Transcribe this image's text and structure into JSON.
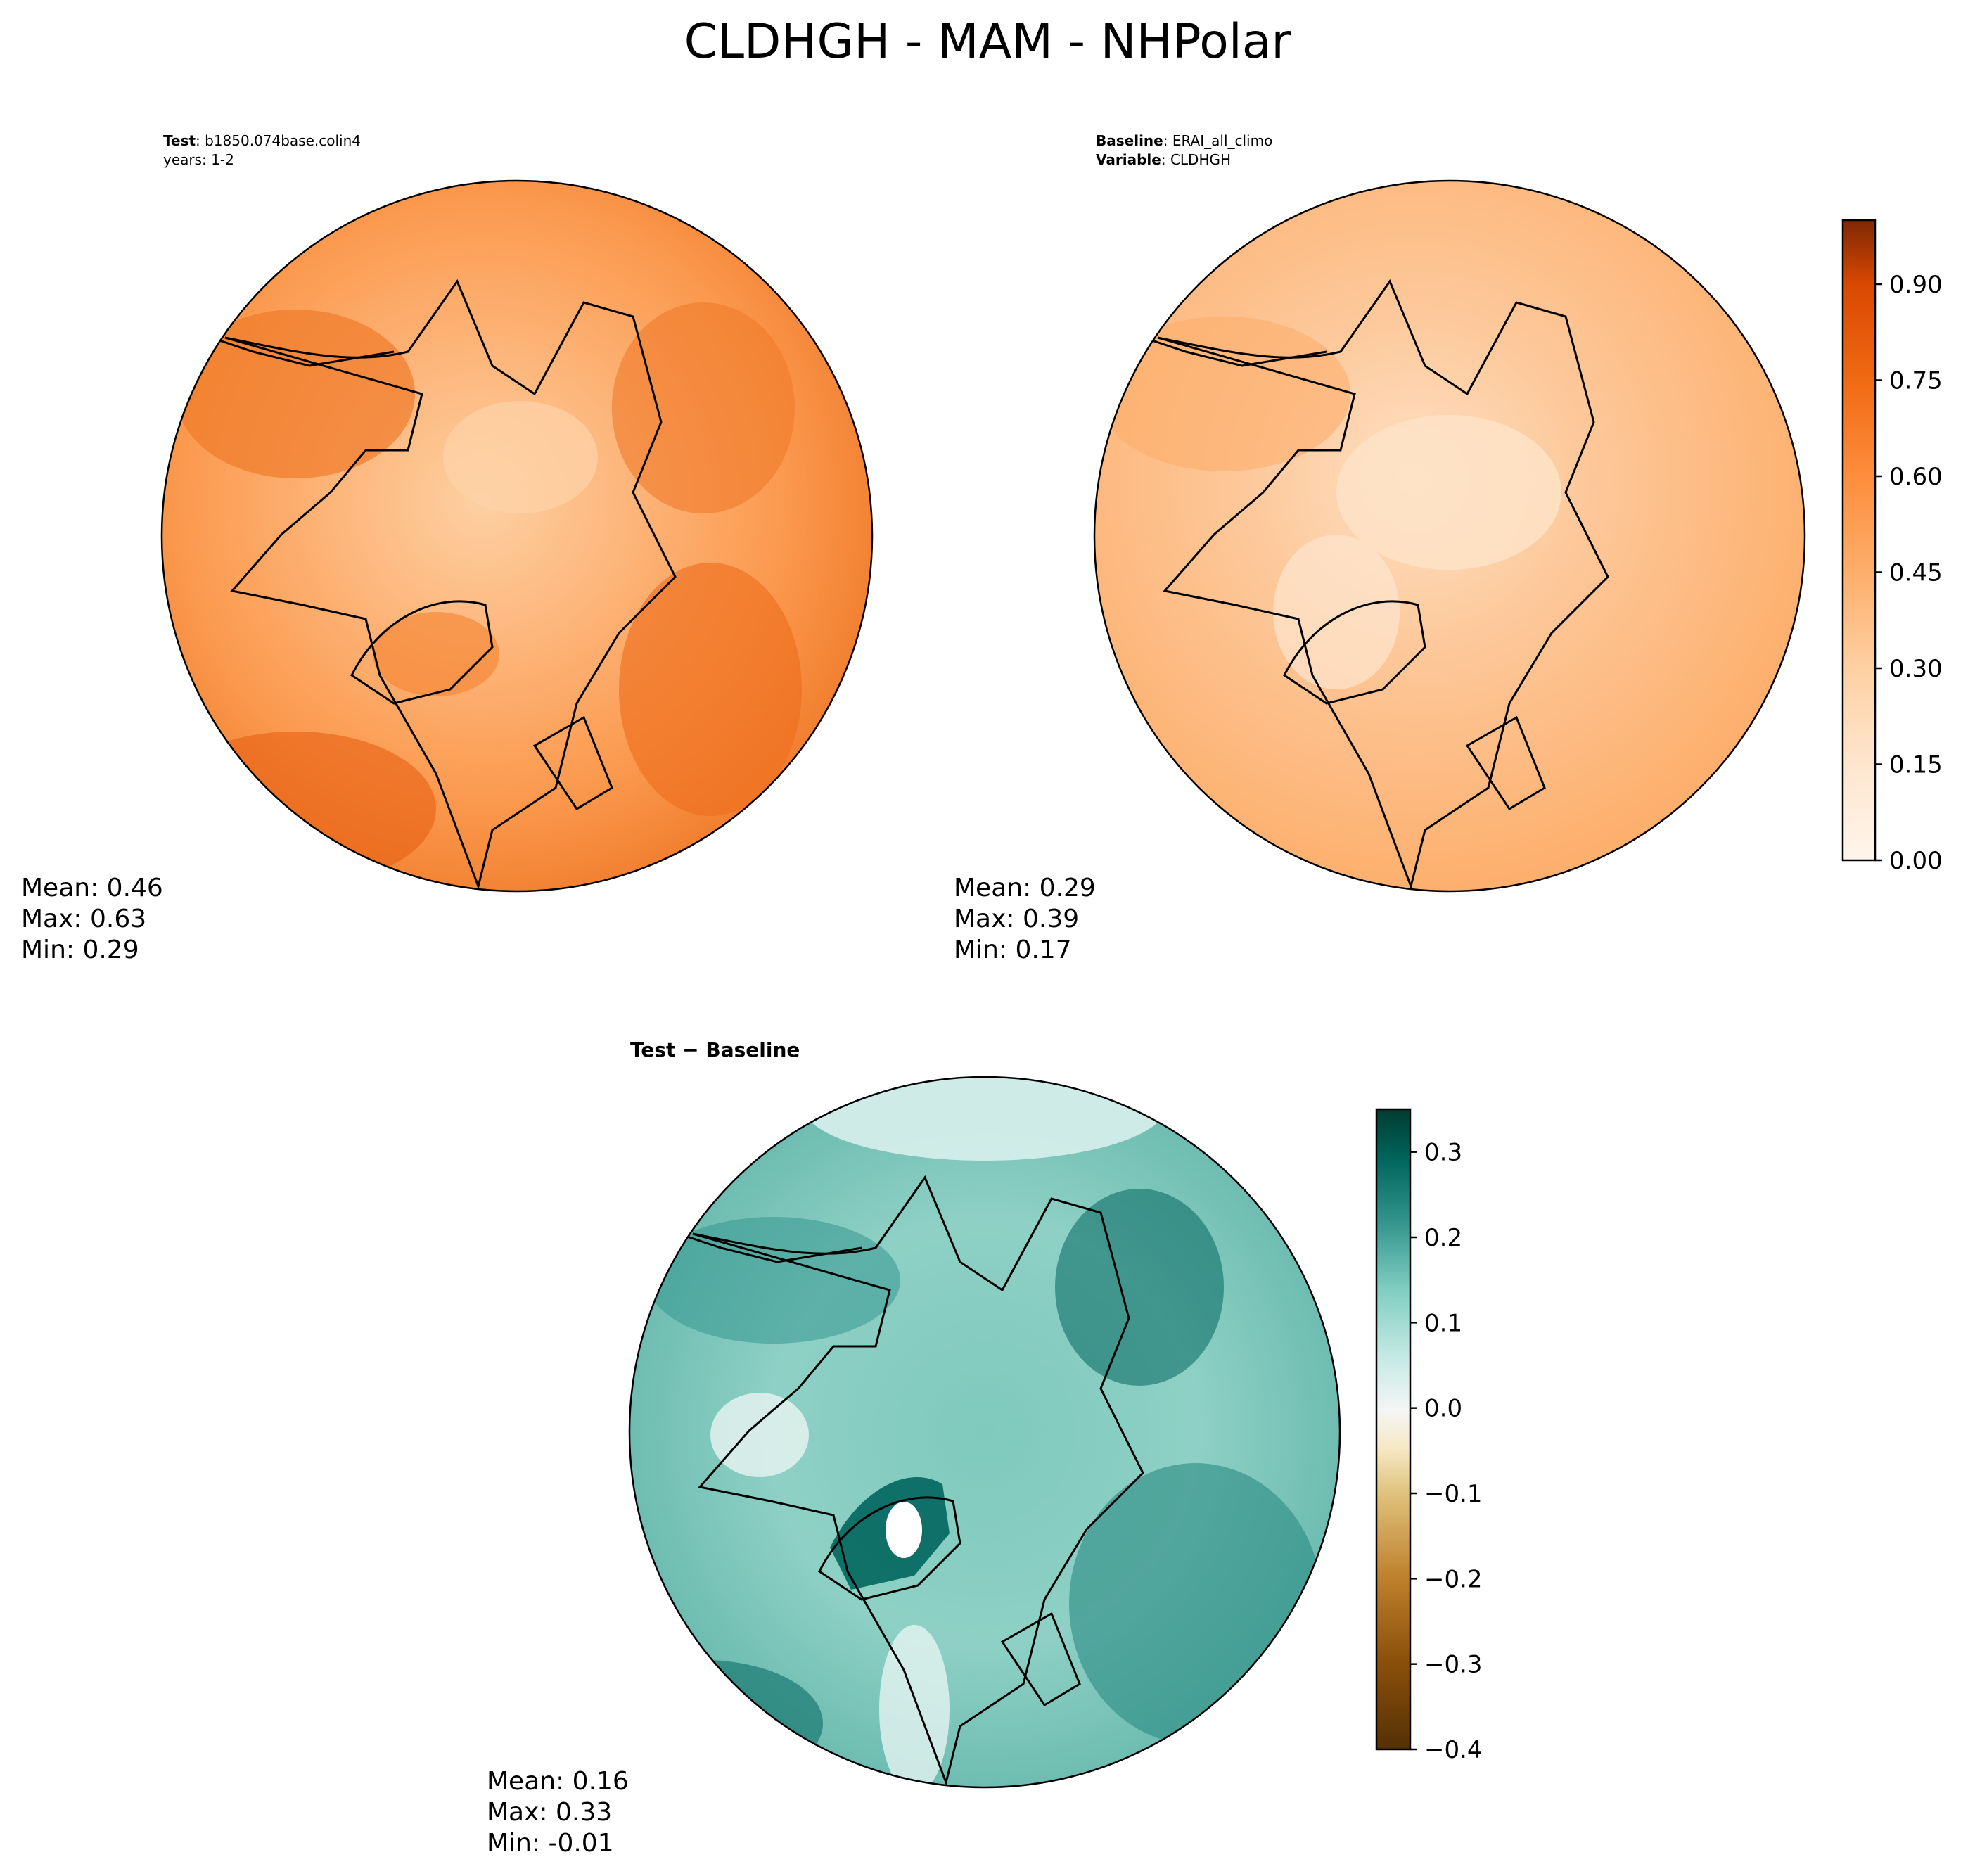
{
  "title": "CLDHGH - MAM - NHPolar",
  "panels": {
    "test": {
      "header_bold": "Test",
      "header_rest": ": b1850.074base.colin4",
      "header_line2": "years: 1-2",
      "stats": {
        "mean": "Mean:  0.46",
        "max": "Max:  0.63",
        "min": "Min:  0.29"
      }
    },
    "baseline": {
      "header_bold": "Baseline",
      "header_rest": ": ERAI_all_climo",
      "header_bold2": "Variable",
      "header_rest2": ": CLDHGH",
      "stats": {
        "mean": "Mean:  0.29",
        "max": "Max:  0.39",
        "min": "Min:  0.17"
      }
    },
    "diff": {
      "header_bold": "Test − Baseline",
      "stats": {
        "mean": "Mean:  0.16",
        "max": "Max:  0.33",
        "min": "Min: -0.01"
      }
    }
  },
  "colorbars": {
    "top": {
      "ticks": [
        "0.00",
        "0.15",
        "0.30",
        "0.45",
        "0.60",
        "0.75",
        "0.90"
      ]
    },
    "diff": {
      "ticks": [
        "−0.4",
        "−0.3",
        "−0.2",
        "−0.1",
        "0.0",
        "0.1",
        "0.2",
        "0.3"
      ]
    }
  },
  "chart_data": [
    {
      "type": "heatmap",
      "title": "Test: b1850.074base.colin4",
      "projection": "north polar stereographic",
      "colormap": "Oranges",
      "mean": 0.46,
      "max": 0.63,
      "min": 0.29,
      "color_range": [
        0.0,
        1.0
      ]
    },
    {
      "type": "heatmap",
      "title": "Baseline: ERAI_all_climo",
      "projection": "north polar stereographic",
      "colormap": "Oranges",
      "mean": 0.29,
      "max": 0.39,
      "min": 0.17,
      "color_range": [
        0.0,
        1.0
      ]
    },
    {
      "type": "heatmap",
      "title": "Test − Baseline",
      "projection": "north polar stereographic",
      "colormap": "BrBG",
      "mean": 0.16,
      "max": 0.33,
      "min": -0.01,
      "color_range": [
        -0.4,
        0.35
      ]
    }
  ],
  "colors": {
    "oranges": [
      "#fff5eb",
      "#fee8d3",
      "#fdd8b2",
      "#fdc28c",
      "#fda762",
      "#fb8d3d",
      "#f2701d",
      "#e25609",
      "#c44103",
      "#9f3303",
      "#7f2704"
    ],
    "brbg": [
      "#543005",
      "#8c510a",
      "#bf812d",
      "#dfc27d",
      "#f6e8c3",
      "#f5f5f5",
      "#c7eae5",
      "#80cdc1",
      "#35978f",
      "#01665e",
      "#003c30"
    ]
  }
}
